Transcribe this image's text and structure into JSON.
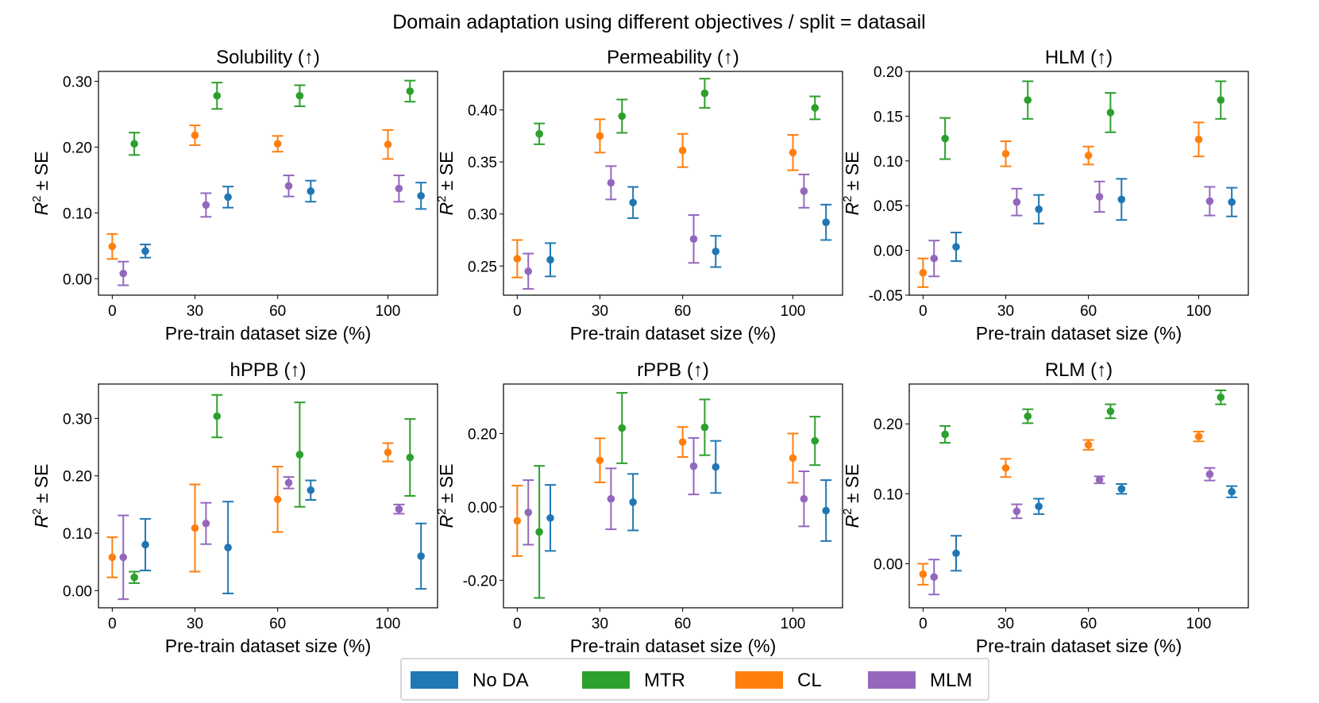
{
  "suptitle": "Domain adaptation using different objectives / split = datasail",
  "legend": [
    {
      "name": "No DA",
      "color": "#1f77b4"
    },
    {
      "name": "MTR",
      "color": "#2ca02c"
    },
    {
      "name": "CL",
      "color": "#ff7f0e"
    },
    {
      "name": "MLM",
      "color": "#9467bd"
    }
  ],
  "chart_data": [
    {
      "type": "scatter",
      "title": "Solubility (↑)",
      "xlabel": "Pre-train dataset size (%)",
      "ylabel_main": "R",
      "ylabel_sup": "2",
      "ylabel_rest": " ± SE",
      "xlim": [
        -5,
        118
      ],
      "ylim": [
        -0.025,
        0.315
      ],
      "xticks": [
        0,
        30,
        60,
        100
      ],
      "xtick_labels": [
        "0",
        "30",
        "60",
        "100"
      ],
      "yticks": [
        0.0,
        0.1,
        0.2,
        0.3
      ],
      "ytick_labels": [
        "0.00",
        "0.10",
        "0.20",
        "0.30"
      ],
      "series": [
        {
          "name": "No DA",
          "color": "#1f77b4",
          "points": [
            {
              "x": 12,
              "y": 0.042,
              "se": 0.01
            },
            {
              "x": 42,
              "y": 0.124,
              "se": 0.016
            },
            {
              "x": 72,
              "y": 0.133,
              "se": 0.016
            },
            {
              "x": 112,
              "y": 0.126,
              "se": 0.02
            }
          ]
        },
        {
          "name": "MTR",
          "color": "#2ca02c",
          "points": [
            {
              "x": 8,
              "y": 0.205,
              "se": 0.017
            },
            {
              "x": 38,
              "y": 0.278,
              "se": 0.02
            },
            {
              "x": 68,
              "y": 0.278,
              "se": 0.016
            },
            {
              "x": 108,
              "y": 0.285,
              "se": 0.016
            }
          ]
        },
        {
          "name": "CL",
          "color": "#ff7f0e",
          "points": [
            {
              "x": 0,
              "y": 0.049,
              "se": 0.019
            },
            {
              "x": 30,
              "y": 0.218,
              "se": 0.015
            },
            {
              "x": 60,
              "y": 0.205,
              "se": 0.012
            },
            {
              "x": 100,
              "y": 0.204,
              "se": 0.022
            }
          ]
        },
        {
          "name": "MLM",
          "color": "#9467bd",
          "points": [
            {
              "x": 4,
              "y": 0.008,
              "se": 0.018
            },
            {
              "x": 34,
              "y": 0.112,
              "se": 0.018
            },
            {
              "x": 64,
              "y": 0.141,
              "se": 0.016
            },
            {
              "x": 104,
              "y": 0.137,
              "se": 0.02
            }
          ]
        }
      ]
    },
    {
      "type": "scatter",
      "title": "Permeability (↑)",
      "xlabel": "Pre-train dataset size (%)",
      "ylabel_main": "R",
      "ylabel_sup": "2",
      "ylabel_rest": " ± SE",
      "xlim": [
        -5,
        118
      ],
      "ylim": [
        0.222,
        0.437
      ],
      "xticks": [
        0,
        30,
        60,
        100
      ],
      "xtick_labels": [
        "0",
        "30",
        "60",
        "100"
      ],
      "yticks": [
        0.25,
        0.3,
        0.35,
        0.4
      ],
      "ytick_labels": [
        "0.25",
        "0.30",
        "0.35",
        "0.40"
      ],
      "series": [
        {
          "name": "No DA",
          "color": "#1f77b4",
          "points": [
            {
              "x": 12,
              "y": 0.256,
              "se": 0.016
            },
            {
              "x": 42,
              "y": 0.311,
              "se": 0.015
            },
            {
              "x": 72,
              "y": 0.264,
              "se": 0.015
            },
            {
              "x": 112,
              "y": 0.292,
              "se": 0.017
            }
          ]
        },
        {
          "name": "MTR",
          "color": "#2ca02c",
          "points": [
            {
              "x": 8,
              "y": 0.377,
              "se": 0.01
            },
            {
              "x": 38,
              "y": 0.394,
              "se": 0.016
            },
            {
              "x": 68,
              "y": 0.416,
              "se": 0.014
            },
            {
              "x": 108,
              "y": 0.402,
              "se": 0.011
            }
          ]
        },
        {
          "name": "CL",
          "color": "#ff7f0e",
          "points": [
            {
              "x": 0,
              "y": 0.257,
              "se": 0.018
            },
            {
              "x": 30,
              "y": 0.375,
              "se": 0.016
            },
            {
              "x": 60,
              "y": 0.361,
              "se": 0.016
            },
            {
              "x": 100,
              "y": 0.359,
              "se": 0.017
            }
          ]
        },
        {
          "name": "MLM",
          "color": "#9467bd",
          "points": [
            {
              "x": 4,
              "y": 0.245,
              "se": 0.017
            },
            {
              "x": 34,
              "y": 0.33,
              "se": 0.016
            },
            {
              "x": 64,
              "y": 0.276,
              "se": 0.023
            },
            {
              "x": 104,
              "y": 0.322,
              "se": 0.016
            }
          ]
        }
      ]
    },
    {
      "type": "scatter",
      "title": "HLM (↑)",
      "xlabel": "Pre-train dataset size (%)",
      "ylabel_main": "R",
      "ylabel_sup": "2",
      "ylabel_rest": " ± SE",
      "xlim": [
        -5,
        118
      ],
      "ylim": [
        -0.05,
        0.2
      ],
      "xticks": [
        0,
        30,
        60,
        100
      ],
      "xtick_labels": [
        "0",
        "30",
        "60",
        "100"
      ],
      "yticks": [
        -0.05,
        0.0,
        0.05,
        0.1,
        0.15,
        0.2
      ],
      "ytick_labels": [
        "-0.05",
        "0.00",
        "0.05",
        "0.10",
        "0.15",
        "0.20"
      ],
      "series": [
        {
          "name": "No DA",
          "color": "#1f77b4",
          "points": [
            {
              "x": 12,
              "y": 0.004,
              "se": 0.016
            },
            {
              "x": 42,
              "y": 0.046,
              "se": 0.016
            },
            {
              "x": 72,
              "y": 0.057,
              "se": 0.023
            },
            {
              "x": 112,
              "y": 0.054,
              "se": 0.016
            }
          ]
        },
        {
          "name": "MTR",
          "color": "#2ca02c",
          "points": [
            {
              "x": 8,
              "y": 0.125,
              "se": 0.023
            },
            {
              "x": 38,
              "y": 0.168,
              "se": 0.021
            },
            {
              "x": 68,
              "y": 0.154,
              "se": 0.022
            },
            {
              "x": 108,
              "y": 0.168,
              "se": 0.021
            }
          ]
        },
        {
          "name": "CL",
          "color": "#ff7f0e",
          "points": [
            {
              "x": 0,
              "y": -0.025,
              "se": 0.016
            },
            {
              "x": 30,
              "y": 0.108,
              "se": 0.014
            },
            {
              "x": 60,
              "y": 0.106,
              "se": 0.01
            },
            {
              "x": 100,
              "y": 0.124,
              "se": 0.019
            }
          ]
        },
        {
          "name": "MLM",
          "color": "#9467bd",
          "points": [
            {
              "x": 4,
              "y": -0.009,
              "se": 0.02
            },
            {
              "x": 34,
              "y": 0.054,
              "se": 0.015
            },
            {
              "x": 64,
              "y": 0.06,
              "se": 0.017
            },
            {
              "x": 104,
              "y": 0.055,
              "se": 0.016
            }
          ]
        }
      ]
    },
    {
      "type": "scatter",
      "title": "hPPB (↑)",
      "xlabel": "Pre-train dataset size (%)",
      "ylabel_main": "R",
      "ylabel_sup": "2",
      "ylabel_rest": " ± SE",
      "xlim": [
        -5,
        118
      ],
      "ylim": [
        -0.03,
        0.36
      ],
      "xticks": [
        0,
        30,
        60,
        100
      ],
      "xtick_labels": [
        "0",
        "30",
        "60",
        "100"
      ],
      "yticks": [
        0.0,
        0.1,
        0.2,
        0.3
      ],
      "ytick_labels": [
        "0.00",
        "0.10",
        "0.20",
        "0.30"
      ],
      "series": [
        {
          "name": "No DA",
          "color": "#1f77b4",
          "points": [
            {
              "x": 12,
              "y": 0.08,
              "se": 0.045
            },
            {
              "x": 42,
              "y": 0.075,
              "se": 0.08
            },
            {
              "x": 72,
              "y": 0.175,
              "se": 0.017
            },
            {
              "x": 112,
              "y": 0.06,
              "se": 0.057
            }
          ]
        },
        {
          "name": "MTR",
          "color": "#2ca02c",
          "points": [
            {
              "x": 8,
              "y": 0.023,
              "se": 0.01
            },
            {
              "x": 38,
              "y": 0.304,
              "se": 0.037
            },
            {
              "x": 68,
              "y": 0.237,
              "se": 0.091
            },
            {
              "x": 108,
              "y": 0.232,
              "se": 0.067
            }
          ]
        },
        {
          "name": "CL",
          "color": "#ff7f0e",
          "points": [
            {
              "x": 0,
              "y": 0.058,
              "se": 0.035
            },
            {
              "x": 30,
              "y": 0.109,
              "se": 0.076
            },
            {
              "x": 60,
              "y": 0.159,
              "se": 0.057
            },
            {
              "x": 100,
              "y": 0.241,
              "se": 0.016
            }
          ]
        },
        {
          "name": "MLM",
          "color": "#9467bd",
          "points": [
            {
              "x": 4,
              "y": 0.058,
              "se": 0.073
            },
            {
              "x": 34,
              "y": 0.117,
              "se": 0.036
            },
            {
              "x": 64,
              "y": 0.188,
              "se": 0.01
            },
            {
              "x": 104,
              "y": 0.142,
              "se": 0.008
            }
          ]
        }
      ]
    },
    {
      "type": "scatter",
      "title": "rPPB (↑)",
      "xlabel": "Pre-train dataset size (%)",
      "ylabel_main": "R",
      "ylabel_sup": "2",
      "ylabel_rest": " ± SE",
      "xlim": [
        -5,
        118
      ],
      "ylim": [
        -0.275,
        0.335
      ],
      "xticks": [
        0,
        30,
        60,
        100
      ],
      "xtick_labels": [
        "0",
        "30",
        "60",
        "100"
      ],
      "yticks": [
        -0.2,
        0.0,
        0.2
      ],
      "ytick_labels": [
        "-0.20",
        "0.00",
        "0.20"
      ],
      "series": [
        {
          "name": "No DA",
          "color": "#1f77b4",
          "points": [
            {
              "x": 12,
              "y": -0.03,
              "se": 0.09
            },
            {
              "x": 42,
              "y": 0.013,
              "se": 0.077
            },
            {
              "x": 72,
              "y": 0.109,
              "se": 0.071
            },
            {
              "x": 112,
              "y": -0.01,
              "se": 0.083
            }
          ]
        },
        {
          "name": "MTR",
          "color": "#2ca02c",
          "points": [
            {
              "x": 8,
              "y": -0.068,
              "se": 0.18
            },
            {
              "x": 38,
              "y": 0.215,
              "se": 0.096
            },
            {
              "x": 68,
              "y": 0.217,
              "se": 0.076
            },
            {
              "x": 108,
              "y": 0.18,
              "se": 0.066
            }
          ]
        },
        {
          "name": "CL",
          "color": "#ff7f0e",
          "points": [
            {
              "x": 0,
              "y": -0.038,
              "se": 0.096
            },
            {
              "x": 30,
              "y": 0.127,
              "se": 0.06
            },
            {
              "x": 60,
              "y": 0.177,
              "se": 0.041
            },
            {
              "x": 100,
              "y": 0.133,
              "se": 0.067
            }
          ]
        },
        {
          "name": "MLM",
          "color": "#9467bd",
          "points": [
            {
              "x": 4,
              "y": -0.015,
              "se": 0.088
            },
            {
              "x": 34,
              "y": 0.022,
              "se": 0.083
            },
            {
              "x": 64,
              "y": 0.111,
              "se": 0.077
            },
            {
              "x": 104,
              "y": 0.022,
              "se": 0.075
            }
          ]
        }
      ]
    },
    {
      "type": "scatter",
      "title": "RLM (↑)",
      "xlabel": "Pre-train dataset size (%)",
      "ylabel_main": "R",
      "ylabel_sup": "2",
      "ylabel_rest": " ± SE",
      "xlim": [
        -5,
        118
      ],
      "ylim": [
        -0.063,
        0.257
      ],
      "xticks": [
        0,
        30,
        60,
        100
      ],
      "xtick_labels": [
        "0",
        "30",
        "60",
        "100"
      ],
      "yticks": [
        0.0,
        0.1,
        0.2
      ],
      "ytick_labels": [
        "0.00",
        "0.10",
        "0.20"
      ],
      "series": [
        {
          "name": "No DA",
          "color": "#1f77b4",
          "points": [
            {
              "x": 12,
              "y": 0.015,
              "se": 0.025
            },
            {
              "x": 42,
              "y": 0.082,
              "se": 0.011
            },
            {
              "x": 72,
              "y": 0.107,
              "se": 0.007
            },
            {
              "x": 112,
              "y": 0.103,
              "se": 0.008
            }
          ]
        },
        {
          "name": "MTR",
          "color": "#2ca02c",
          "points": [
            {
              "x": 8,
              "y": 0.185,
              "se": 0.012
            },
            {
              "x": 38,
              "y": 0.211,
              "se": 0.01
            },
            {
              "x": 68,
              "y": 0.218,
              "se": 0.01
            },
            {
              "x": 108,
              "y": 0.238,
              "se": 0.01
            }
          ]
        },
        {
          "name": "CL",
          "color": "#ff7f0e",
          "points": [
            {
              "x": 0,
              "y": -0.015,
              "se": 0.015
            },
            {
              "x": 30,
              "y": 0.137,
              "se": 0.013
            },
            {
              "x": 60,
              "y": 0.17,
              "se": 0.007
            },
            {
              "x": 100,
              "y": 0.182,
              "se": 0.007
            }
          ]
        },
        {
          "name": "MLM",
          "color": "#9467bd",
          "points": [
            {
              "x": 4,
              "y": -0.019,
              "se": 0.025
            },
            {
              "x": 34,
              "y": 0.075,
              "se": 0.01
            },
            {
              "x": 64,
              "y": 0.12,
              "se": 0.005
            },
            {
              "x": 104,
              "y": 0.128,
              "se": 0.009
            }
          ]
        }
      ]
    }
  ]
}
